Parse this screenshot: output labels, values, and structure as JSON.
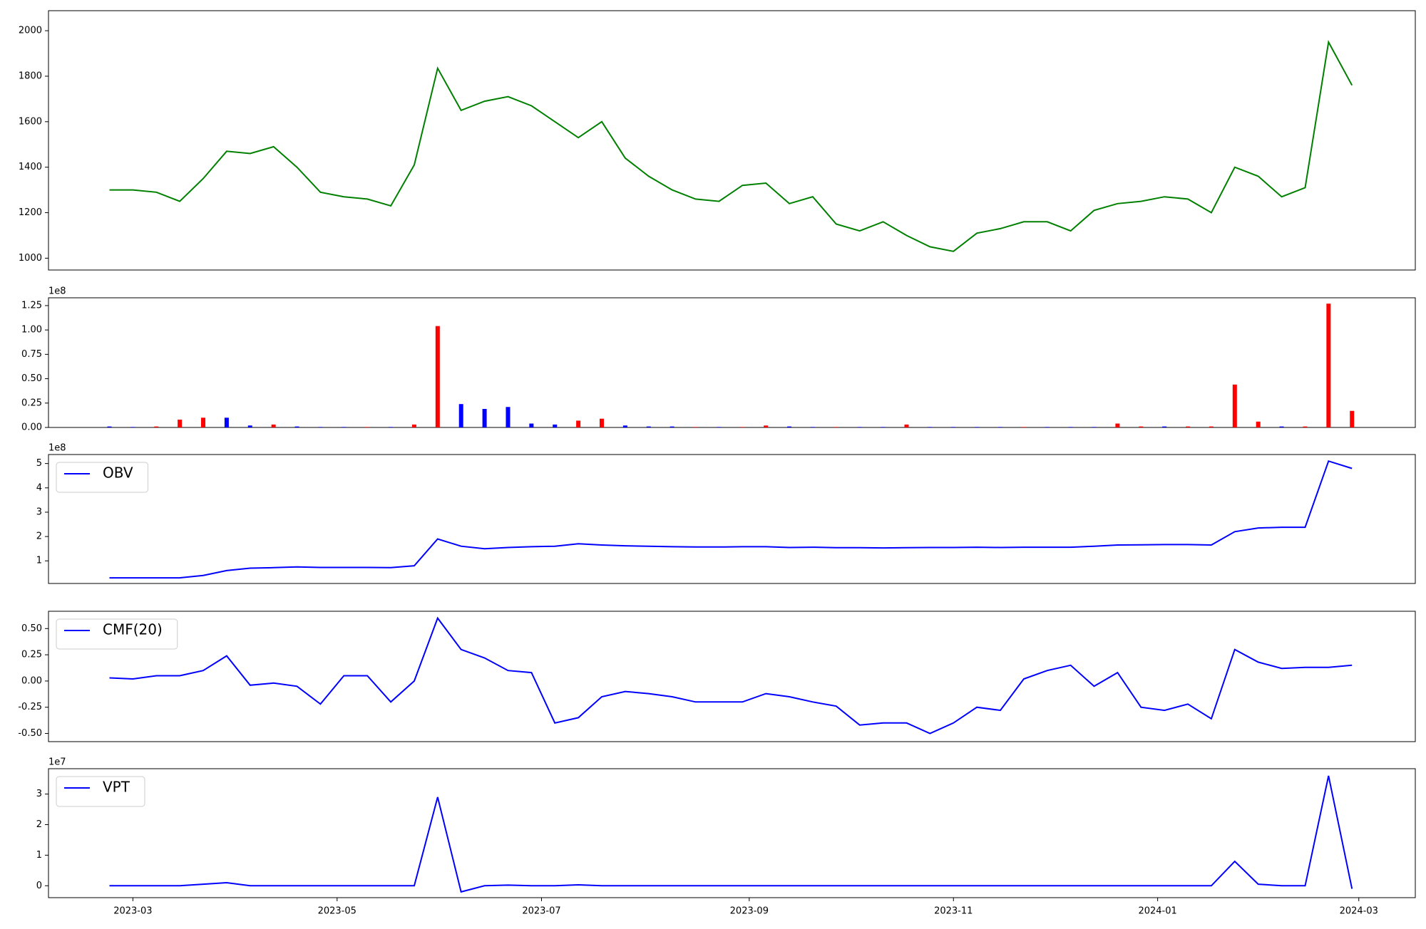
{
  "chart_data": [
    {
      "type": "line",
      "color": "#008000",
      "values": [
        1300,
        1300,
        1290,
        1250,
        1350,
        1470,
        1460,
        1490,
        1400,
        1290,
        1270,
        1260,
        1230,
        1410,
        1835,
        1650,
        1690,
        1710,
        1670,
        1600,
        1530,
        1600,
        1440,
        1360,
        1300,
        1260,
        1250,
        1320,
        1330,
        1240,
        1270,
        1150,
        1120,
        1160,
        1100,
        1050,
        1030,
        1110,
        1130,
        1160,
        1160,
        1120,
        1210,
        1240,
        1250,
        1270,
        1260,
        1200,
        1400,
        1360,
        1270,
        1310,
        1950,
        1760
      ],
      "ylim": [
        948,
        2088
      ],
      "yticks": [
        1000,
        1200,
        1400,
        1600,
        1800,
        2000
      ]
    },
    {
      "type": "bar",
      "offset_text": "1e8",
      "values": [
        0.01,
        0.005,
        0.01,
        0.08,
        0.1,
        0.1,
        0.02,
        0.03,
        0.01,
        0.005,
        0.005,
        0.005,
        0.005,
        0.03,
        1.04,
        0.24,
        0.19,
        0.21,
        0.04,
        0.03,
        0.07,
        0.09,
        0.02,
        0.01,
        0.01,
        0.005,
        0.005,
        0.005,
        0.02,
        0.01,
        0.005,
        0.005,
        0.005,
        0.005,
        0.03,
        0.005,
        0.005,
        0.005,
        0.005,
        0.005,
        0.005,
        0.005,
        0.005,
        0.04,
        0.01,
        0.01,
        0.01,
        0.01,
        0.44,
        0.06,
        0.01,
        0.01,
        1.27,
        0.17
      ],
      "colors": [
        "#0000ff",
        "#0000ff",
        "#ff0000",
        "#ff0000",
        "#ff0000",
        "#0000ff",
        "#0000ff",
        "#ff0000",
        "#0000ff",
        "#0000ff",
        "#0000ff",
        "#ff0000",
        "#0000ff",
        "#ff0000",
        "#ff0000",
        "#0000ff",
        "#0000ff",
        "#0000ff",
        "#0000ff",
        "#0000ff",
        "#ff0000",
        "#ff0000",
        "#0000ff",
        "#0000ff",
        "#0000ff",
        "#ff0000",
        "#0000ff",
        "#ff0000",
        "#ff0000",
        "#0000ff",
        "#0000ff",
        "#ff0000",
        "#0000ff",
        "#0000ff",
        "#ff0000",
        "#0000ff",
        "#0000ff",
        "#0000ff",
        "#0000ff",
        "#ff0000",
        "#0000ff",
        "#0000ff",
        "#0000ff",
        "#ff0000",
        "#ff0000",
        "#0000ff",
        "#ff0000",
        "#ff0000",
        "#ff0000",
        "#ff0000",
        "#0000ff",
        "#ff0000",
        "#ff0000",
        "#ff0000"
      ],
      "ylim": [
        0,
        1.33
      ],
      "yticks": [
        {
          "value": 0,
          "label": "0.00"
        },
        {
          "value": 0.25,
          "label": "0.25"
        },
        {
          "value": 0.5,
          "label": "0.50"
        },
        {
          "value": 0.75,
          "label": "0.75"
        },
        {
          "value": 1,
          "label": "1.00"
        },
        {
          "value": 1.25,
          "label": "1.25"
        }
      ]
    },
    {
      "type": "line",
      "offset_text": "1e8",
      "legend": "upper left",
      "series": [
        {
          "name": "OBV",
          "color": "#0000ff",
          "values": [
            0.3,
            0.3,
            0.3,
            0.3,
            0.4,
            0.6,
            0.7,
            0.72,
            0.75,
            0.73,
            0.73,
            0.73,
            0.72,
            0.8,
            1.9,
            1.6,
            1.5,
            1.55,
            1.58,
            1.6,
            1.7,
            1.65,
            1.62,
            1.6,
            1.58,
            1.57,
            1.57,
            1.58,
            1.58,
            1.55,
            1.56,
            1.54,
            1.54,
            1.53,
            1.54,
            1.55,
            1.55,
            1.56,
            1.55,
            1.56,
            1.56,
            1.56,
            1.6,
            1.65,
            1.66,
            1.67,
            1.67,
            1.65,
            2.2,
            2.35,
            2.38,
            2.38,
            5.1,
            4.8
          ]
        }
      ],
      "ylim": [
        0.07,
        5.37
      ],
      "yticks": [
        1,
        2,
        3,
        4,
        5
      ]
    },
    {
      "type": "line",
      "legend": "upper left",
      "series": [
        {
          "name": "CMF(20)",
          "color": "#0000ff",
          "values": [
            0.03,
            0.02,
            0.05,
            0.05,
            0.1,
            0.24,
            -0.04,
            -0.02,
            -0.05,
            -0.22,
            0.05,
            0.05,
            -0.2,
            0.0,
            0.6,
            0.3,
            0.22,
            0.1,
            0.08,
            -0.4,
            -0.35,
            -0.15,
            -0.1,
            -0.12,
            -0.15,
            -0.2,
            -0.2,
            -0.2,
            -0.12,
            -0.15,
            -0.2,
            -0.24,
            -0.42,
            -0.4,
            -0.4,
            -0.5,
            -0.4,
            -0.25,
            -0.28,
            0.02,
            0.1,
            0.15,
            -0.05,
            0.08,
            -0.25,
            -0.28,
            -0.22,
            -0.36,
            0.3,
            0.18,
            0.12,
            0.13,
            0.13,
            0.15
          ]
        }
      ],
      "ylim": [
        -0.578,
        0.665
      ],
      "yticks": [
        {
          "value": -0.5,
          "label": "-0.50"
        },
        {
          "value": -0.25,
          "label": "-0.25"
        },
        {
          "value": 0,
          "label": "0.00"
        },
        {
          "value": 0.25,
          "label": "0.25"
        },
        {
          "value": 0.5,
          "label": "0.50"
        }
      ]
    },
    {
      "type": "line",
      "offset_text": "1e7",
      "legend": "upper left",
      "series": [
        {
          "name": "VPT",
          "color": "#0000ff",
          "values": [
            0,
            0,
            0,
            0,
            0.05,
            0.1,
            0,
            0,
            0,
            0,
            0,
            0,
            0,
            0,
            2.9,
            -0.2,
            0,
            0.02,
            0,
            0,
            0.03,
            0,
            0,
            0,
            0,
            0,
            0,
            0,
            0,
            0,
            0,
            0,
            0,
            0,
            0,
            0,
            0,
            0,
            0,
            0,
            0,
            0,
            0,
            0,
            0,
            0,
            0,
            0,
            0.8,
            0.05,
            0,
            0,
            3.6,
            -0.1
          ]
        }
      ],
      "ylim": [
        -0.39,
        3.83
      ],
      "yticks": [
        0,
        1,
        2,
        3
      ],
      "xlim": [
        -2.6,
        55.7
      ],
      "xticks": [
        {
          "value": 1.0,
          "label": "2023-03"
        },
        {
          "value": 9.71,
          "label": "2023-05"
        },
        {
          "value": 18.43,
          "label": "2023-07"
        },
        {
          "value": 27.29,
          "label": "2023-09"
        },
        {
          "value": 36.0,
          "label": "2023-11"
        },
        {
          "value": 44.71,
          "label": "2024-01"
        },
        {
          "value": 53.29,
          "label": "2024-03"
        }
      ]
    }
  ]
}
